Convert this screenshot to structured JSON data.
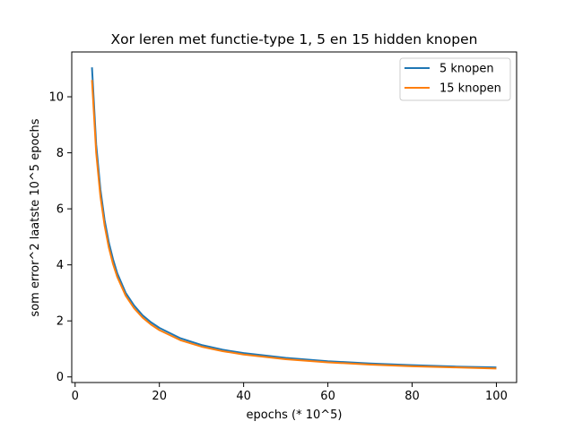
{
  "chart_data": {
    "type": "line",
    "title": "Xor leren met functie-type 1, 5 en 15 hidden knopen",
    "xlabel": "epochs (* 10^5)",
    "ylabel": "som error^2 laatste 10^5 epochs",
    "xlim": [
      -0.8,
      104.8
    ],
    "ylim": [
      -0.2,
      11.6
    ],
    "xticks": [
      0,
      20,
      40,
      60,
      80,
      100
    ],
    "yticks": [
      0,
      2,
      4,
      6,
      8,
      10
    ],
    "grid": false,
    "legend_position": "top-right",
    "series": [
      {
        "name": "5 knopen",
        "color": "#1f77b4",
        "x": [
          4,
          5,
          6,
          7,
          8,
          9,
          10,
          12,
          14,
          16,
          18,
          20,
          25,
          30,
          35,
          40,
          50,
          60,
          70,
          80,
          90,
          100
        ],
        "y": [
          11.05,
          8.3,
          6.7,
          5.6,
          4.8,
          4.2,
          3.7,
          3.0,
          2.55,
          2.2,
          1.95,
          1.75,
          1.38,
          1.14,
          0.97,
          0.85,
          0.68,
          0.56,
          0.48,
          0.42,
          0.37,
          0.34
        ]
      },
      {
        "name": "15 knopen",
        "color": "#ff7f0e",
        "x": [
          4,
          5,
          6,
          7,
          8,
          9,
          10,
          12,
          14,
          16,
          18,
          20,
          25,
          30,
          35,
          40,
          50,
          60,
          70,
          80,
          90,
          100
        ],
        "y": [
          10.6,
          8.0,
          6.45,
          5.4,
          4.62,
          4.03,
          3.57,
          2.9,
          2.45,
          2.12,
          1.87,
          1.67,
          1.31,
          1.08,
          0.92,
          0.8,
          0.63,
          0.52,
          0.44,
          0.38,
          0.34,
          0.3
        ]
      }
    ]
  }
}
